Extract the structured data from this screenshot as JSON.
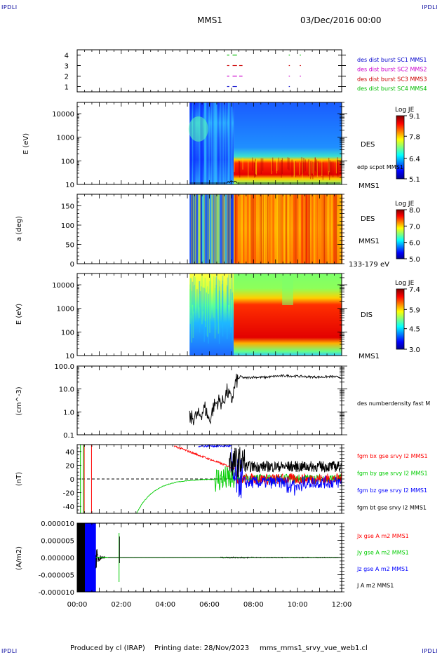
{
  "header": {
    "mission": "MMS1",
    "datetime": "03/Dec/2016 00:00"
  },
  "corner_tags": {
    "top_left": "IPDLI",
    "top_right": "IPDLI",
    "bottom_left": "IPDLI",
    "bottom_right": "IPDLI"
  },
  "footer": {
    "produced": "Produced by cl (IRAP)",
    "printing": "Printing date: 28/Nov/2023",
    "file": "mms_mms1_srvy_vue_web1.cl"
  },
  "time_axis": {
    "ticks": [
      "00:00",
      "02:00",
      "04:00",
      "06:00",
      "08:00",
      "10:00",
      "12:00"
    ],
    "range_hours": [
      0,
      12
    ]
  },
  "chart_data": [
    {
      "type": "scatter",
      "id": "burst",
      "ylim": [
        0.5,
        4.5
      ],
      "yticks": [
        "1",
        "2",
        "3",
        "4"
      ],
      "legend": [
        {
          "label": "des dist burst SC1 MMS1",
          "color": "#0000cc"
        },
        {
          "label": "des dist burst SC2 MMS2",
          "color": "#cc00cc"
        },
        {
          "label": "des dist burst SC3 MMS3",
          "color": "#cc0000"
        },
        {
          "label": "des dist burst SC4 MMS4",
          "color": "#00bb00"
        }
      ],
      "series": [
        {
          "name": "des dist burst SC1 MMS1",
          "y": 1,
          "intervals": [
            [
              6.8,
              6.9
            ],
            [
              7.05,
              7.25
            ],
            [
              9.6,
              9.65
            ]
          ]
        },
        {
          "name": "des dist burst SC2 MMS2",
          "y": 2,
          "intervals": [
            [
              6.8,
              6.9
            ],
            [
              7.05,
              7.25
            ],
            [
              7.35,
              7.5
            ],
            [
              9.6,
              9.65
            ],
            [
              10.1,
              10.15
            ]
          ]
        },
        {
          "name": "des dist burst SC3 MMS3",
          "y": 3,
          "intervals": [
            [
              6.8,
              6.9
            ],
            [
              7.05,
              7.25
            ],
            [
              7.35,
              7.5
            ],
            [
              9.6,
              9.65
            ],
            [
              10.1,
              10.15
            ]
          ]
        },
        {
          "name": "des dist burst SC4 MMS4",
          "y": 4,
          "intervals": [
            [
              6.8,
              6.9
            ],
            [
              7.05,
              7.25
            ],
            [
              9.6,
              9.65
            ],
            [
              10.1,
              10.15
            ]
          ]
        }
      ]
    },
    {
      "type": "heatmap",
      "id": "des_energy",
      "ylabel": "E (eV)",
      "yscale": "log",
      "ylim": [
        10,
        30000
      ],
      "yticks": [
        "10",
        "100",
        "1000",
        "10000"
      ],
      "data_start_hour": 5.1,
      "species": "DES",
      "spacecraft": "MMS1",
      "overlay_label": "edp scpot MMS1",
      "colorbar": {
        "label": "Log JE",
        "ticks": [
          "5.1",
          "6.4",
          "7.8",
          "9.1"
        ],
        "range": [
          5.1,
          9.1
        ]
      },
      "description_values": {
        "sheath_band_eV": [
          30,
          200
        ],
        "sheath_level": 8.9,
        "sphere_level": 5.8
      }
    },
    {
      "type": "heatmap",
      "id": "des_pitch",
      "ylabel": "a (deg)",
      "ylim": [
        0,
        180
      ],
      "yticks": [
        "0",
        "50",
        "100",
        "150"
      ],
      "data_start_hour": 5.1,
      "species": "DES",
      "spacecraft": "MMS1",
      "energy_range": "133-179 eV",
      "colorbar": {
        "label": "Log JE",
        "ticks": [
          "5.0",
          "6.0",
          "7.0",
          "8.0"
        ],
        "range": [
          5.0,
          8.0
        ]
      }
    },
    {
      "type": "heatmap",
      "id": "dis_energy",
      "ylabel": "E (eV)",
      "yscale": "log",
      "ylim": [
        10,
        30000
      ],
      "yticks": [
        "10",
        "100",
        "1000",
        "10000"
      ],
      "data_start_hour": 5.1,
      "species": "DIS",
      "spacecraft": "MMS1",
      "colorbar": {
        "label": "Log JE",
        "ticks": [
          "3.0",
          "4.5",
          "5.9",
          "7.4"
        ],
        "range": [
          3.0,
          7.4
        ]
      }
    },
    {
      "type": "line",
      "id": "density",
      "ylabel": "(cm^-3)",
      "yscale": "log",
      "ylim": [
        0.1,
        100
      ],
      "yticks": [
        "0.1",
        "1.0",
        "10.0",
        "100.0"
      ],
      "legend": [
        {
          "label": "des numberdensity fast M",
          "color": "#000000"
        }
      ],
      "x": [
        5.1,
        5.4,
        5.6,
        5.8,
        6.0,
        6.2,
        6.4,
        6.6,
        6.8,
        7.0,
        7.2,
        7.4,
        7.6,
        8.0,
        8.5,
        9.0,
        9.5,
        10.0,
        10.5,
        11.0,
        11.5,
        12.0
      ],
      "values": [
        0.5,
        0.6,
        0.8,
        1.5,
        0.4,
        1.8,
        3.0,
        2.5,
        8.0,
        3.0,
        20,
        35,
        30,
        33,
        32,
        36,
        38,
        36,
        34,
        33,
        35,
        32
      ]
    },
    {
      "type": "line",
      "id": "magnetic",
      "ylabel": "(nT)",
      "ylim": [
        -50,
        50
      ],
      "yticks": [
        "-40",
        "-20",
        "0",
        "20",
        "40"
      ],
      "legend": [
        {
          "label": "fgm bx gse srvy l2 MMS1",
          "color": "#ff0000"
        },
        {
          "label": "fgm by gse srvy l2 MMS1",
          "color": "#00cc00"
        },
        {
          "label": "fgm bz gse srvy l2 MMS1",
          "color": "#0000ff"
        },
        {
          "label": "fgm bt gse srvy l2 MMS1",
          "color": "#000000"
        }
      ]
    },
    {
      "type": "line",
      "id": "current",
      "ylabel": "(A/m2)",
      "ylim": [
        -1e-05,
        1e-05
      ],
      "yticks": [
        "-0.000010",
        "-0.000005",
        "0.000000",
        "0.000005",
        "0.000010"
      ],
      "legend": [
        {
          "label": "Jx gse A m2 MMS1",
          "color": "#ff0000"
        },
        {
          "label": "Jy gse A m2 MMS1",
          "color": "#00cc00"
        },
        {
          "label": "Jz gse A m2 MMS1",
          "color": "#0000ff"
        },
        {
          "label": "J A m2 MMS1",
          "color": "#000000"
        }
      ]
    }
  ],
  "colors": {
    "cbar_low": "#00008f",
    "cbar_high": "#7f0000"
  }
}
